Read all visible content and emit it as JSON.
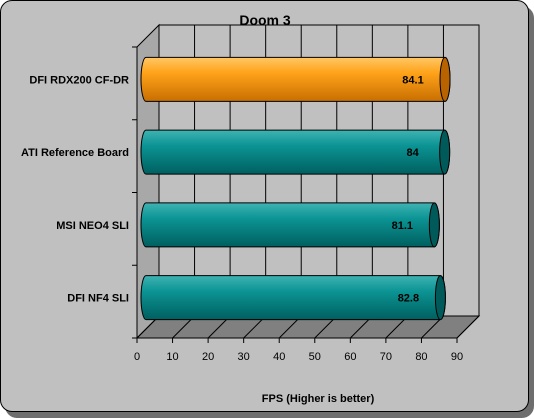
{
  "chart_data": {
    "type": "bar",
    "orientation": "horizontal",
    "title": "Doom 3",
    "xlabel": "FPS (Higher is better)",
    "ylabel": "",
    "categories": [
      "DFI RDX200 CF-DR",
      "ATI Reference Board",
      "MSI NEO4 SLI",
      "DFI NF4 SLI"
    ],
    "values": [
      84.1,
      84,
      81.1,
      82.8
    ],
    "value_labels": [
      "84.1",
      "84",
      "81.1",
      "82.8"
    ],
    "bar_colors": [
      "#ff9900",
      "#008b8b",
      "#008b8b",
      "#008b8b"
    ],
    "xlim": [
      0,
      90
    ],
    "xticks": [
      "0",
      "10",
      "20",
      "30",
      "40",
      "50",
      "60",
      "70",
      "80",
      "90"
    ],
    "grid": true,
    "legend": "none",
    "background": "#c0c0c0",
    "plot_wall_color": "#c0c0c0",
    "plot_floor_color": "#808080"
  }
}
